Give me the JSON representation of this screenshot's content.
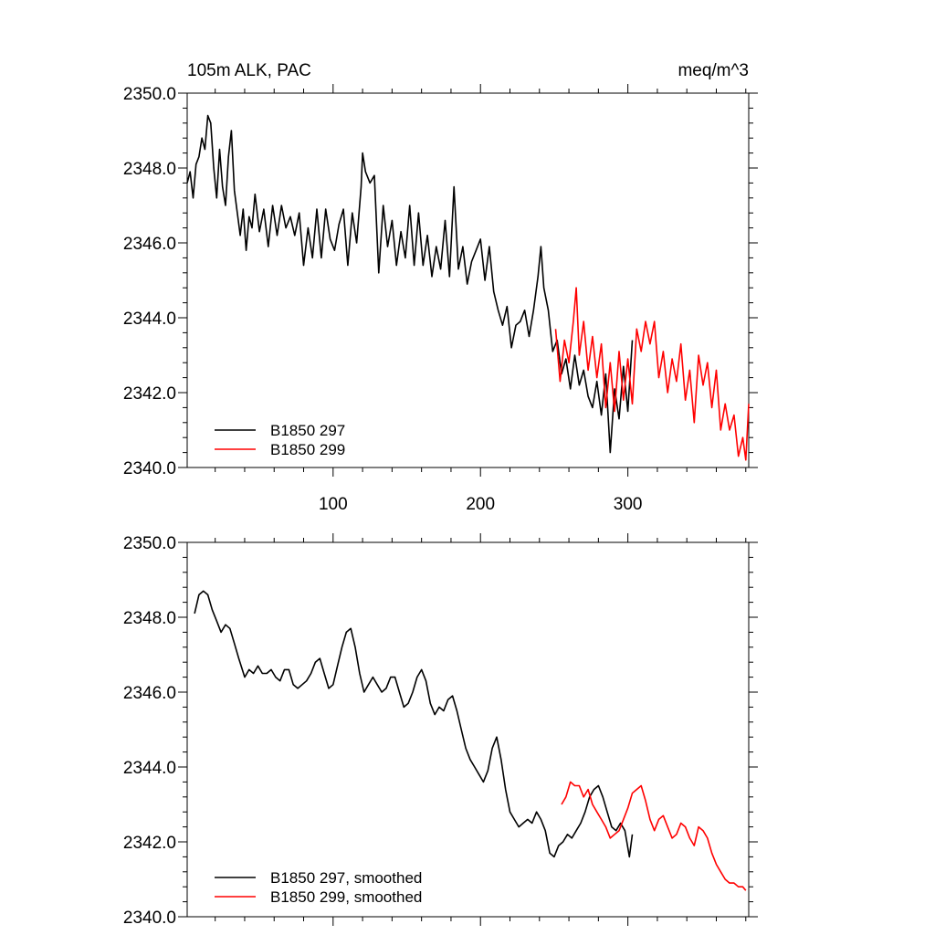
{
  "chart_data": [
    {
      "type": "line",
      "title": "105m ALK, PAC",
      "units": "meq/m^3",
      "xlim": [
        1,
        382
      ],
      "ylim": [
        2340,
        2350
      ],
      "y_ticks": [
        "2340.0",
        "2342.0",
        "2344.0",
        "2346.0",
        "2348.0",
        "2350.0"
      ],
      "x_ticks": [
        "100",
        "200",
        "300"
      ],
      "legend_position": "bottom-left",
      "series": [
        {
          "name": "B1850 297",
          "color": "#000000",
          "x": [
            1,
            3,
            5,
            7,
            9,
            11,
            13,
            15,
            17,
            19,
            21,
            23,
            25,
            27,
            29,
            31,
            33,
            35,
            37,
            39,
            41,
            43,
            45,
            47,
            50,
            53,
            56,
            59,
            62,
            65,
            68,
            71,
            74,
            77,
            80,
            83,
            86,
            89,
            92,
            95,
            98,
            101,
            104,
            107,
            110,
            113,
            116,
            119,
            120,
            122,
            125,
            128,
            131,
            134,
            137,
            140,
            143,
            146,
            149,
            152,
            155,
            158,
            161,
            164,
            167,
            170,
            173,
            176,
            179,
            182,
            185,
            188,
            191,
            194,
            197,
            200,
            203,
            206,
            209,
            212,
            215,
            218,
            221,
            224,
            227,
            230,
            233,
            236,
            239,
            241,
            243,
            246,
            249,
            252,
            255,
            258,
            261,
            264,
            267,
            270,
            273,
            276,
            279,
            282,
            285,
            288,
            291,
            294,
            297,
            300,
            303
          ],
          "y": [
            2347.6,
            2347.9,
            2347.2,
            2348.1,
            2348.3,
            2348.8,
            2348.5,
            2349.4,
            2349.2,
            2348.0,
            2347.2,
            2348.5,
            2347.5,
            2347.0,
            2348.3,
            2349.0,
            2347.4,
            2346.8,
            2346.2,
            2346.9,
            2345.8,
            2346.7,
            2346.4,
            2347.3,
            2346.3,
            2346.9,
            2345.9,
            2347.0,
            2346.2,
            2347.0,
            2346.4,
            2346.7,
            2346.2,
            2346.8,
            2345.4,
            2346.4,
            2345.6,
            2346.9,
            2345.6,
            2346.9,
            2346.1,
            2345.8,
            2346.5,
            2346.9,
            2345.4,
            2346.8,
            2346.0,
            2347.5,
            2348.4,
            2347.9,
            2347.6,
            2347.8,
            2345.2,
            2347.0,
            2345.9,
            2346.6,
            2345.4,
            2346.3,
            2345.6,
            2347.0,
            2345.4,
            2346.8,
            2345.4,
            2346.2,
            2345.1,
            2345.9,
            2345.3,
            2346.6,
            2345.1,
            2347.5,
            2345.3,
            2345.9,
            2344.9,
            2345.5,
            2345.8,
            2346.1,
            2345.0,
            2345.9,
            2344.7,
            2344.2,
            2343.8,
            2344.3,
            2343.2,
            2343.8,
            2343.9,
            2344.2,
            2343.5,
            2344.2,
            2345.1,
            2345.9,
            2344.8,
            2344.2,
            2343.1,
            2343.4,
            2342.5,
            2342.9,
            2342.1,
            2343.0,
            2342.2,
            2342.6,
            2341.9,
            2341.6,
            2342.3,
            2341.4,
            2342.5,
            2340.4,
            2342.1,
            2341.3,
            2342.7,
            2341.5,
            2343.4
          ]
        },
        {
          "name": "B1850 299",
          "color": "#ff0000",
          "x": [
            251,
            254,
            257,
            260,
            263,
            265,
            267,
            270,
            273,
            276,
            279,
            282,
            285,
            288,
            291,
            294,
            297,
            300,
            303,
            306,
            309,
            312,
            315,
            318,
            321,
            324,
            327,
            330,
            333,
            336,
            339,
            342,
            345,
            348,
            351,
            354,
            357,
            360,
            363,
            366,
            369,
            372,
            375,
            378,
            380,
            382
          ],
          "y": [
            2343.7,
            2342.3,
            2343.4,
            2342.8,
            2343.9,
            2344.8,
            2343.0,
            2343.9,
            2342.6,
            2343.5,
            2342.4,
            2343.3,
            2341.6,
            2342.8,
            2341.5,
            2343.1,
            2341.8,
            2342.9,
            2341.7,
            2343.7,
            2343.1,
            2343.9,
            2343.3,
            2343.9,
            2342.4,
            2343.1,
            2342.0,
            2342.9,
            2342.3,
            2343.3,
            2341.8,
            2342.6,
            2341.2,
            2343.0,
            2342.2,
            2342.8,
            2341.6,
            2342.6,
            2341.0,
            2341.7,
            2341.0,
            2341.4,
            2340.3,
            2340.8,
            2340.2,
            2341.7
          ]
        }
      ]
    },
    {
      "type": "line",
      "xlim": [
        1,
        382
      ],
      "ylim": [
        2340,
        2350
      ],
      "y_ticks": [
        "2340.0",
        "2342.0",
        "2344.0",
        "2346.0",
        "2348.0",
        "2350.0"
      ],
      "legend_position": "bottom-left",
      "series": [
        {
          "name": "B1850 297, smoothed",
          "color": "#000000",
          "x": [
            6,
            9,
            12,
            15,
            18,
            21,
            24,
            27,
            30,
            33,
            36,
            40,
            43,
            46,
            49,
            52,
            55,
            58,
            61,
            64,
            67,
            70,
            73,
            76,
            79,
            82,
            85,
            88,
            91,
            94,
            97,
            100,
            103,
            106,
            109,
            112,
            115,
            118,
            121,
            124,
            127,
            130,
            133,
            136,
            139,
            142,
            145,
            148,
            151,
            154,
            157,
            160,
            163,
            166,
            169,
            172,
            175,
            178,
            181,
            184,
            187,
            190,
            193,
            196,
            199,
            202,
            205,
            208,
            211,
            214,
            217,
            220,
            223,
            226,
            229,
            232,
            235,
            238,
            241,
            244,
            247,
            250,
            253,
            256,
            259,
            262,
            265,
            268,
            271,
            274,
            277,
            280,
            283,
            286,
            289,
            292,
            295,
            298,
            301,
            303
          ],
          "y": [
            2348.1,
            2348.6,
            2348.7,
            2348.6,
            2348.2,
            2347.9,
            2347.6,
            2347.8,
            2347.7,
            2347.3,
            2346.9,
            2346.4,
            2346.6,
            2346.5,
            2346.7,
            2346.5,
            2346.5,
            2346.6,
            2346.4,
            2346.3,
            2346.6,
            2346.6,
            2346.2,
            2346.1,
            2346.2,
            2346.3,
            2346.5,
            2346.8,
            2346.9,
            2346.5,
            2346.1,
            2346.2,
            2346.7,
            2347.2,
            2347.6,
            2347.7,
            2347.2,
            2346.5,
            2346.0,
            2346.2,
            2346.4,
            2346.2,
            2346.0,
            2346.1,
            2346.4,
            2346.4,
            2346.0,
            2345.6,
            2345.7,
            2346.0,
            2346.4,
            2346.6,
            2346.3,
            2345.7,
            2345.4,
            2345.6,
            2345.5,
            2345.8,
            2345.9,
            2345.5,
            2345.0,
            2344.5,
            2344.2,
            2344.0,
            2343.8,
            2343.6,
            2343.9,
            2344.5,
            2344.8,
            2344.2,
            2343.4,
            2342.8,
            2342.6,
            2342.4,
            2342.5,
            2342.6,
            2342.5,
            2342.8,
            2342.6,
            2342.3,
            2341.7,
            2341.6,
            2341.9,
            2342.0,
            2342.2,
            2342.1,
            2342.3,
            2342.5,
            2342.8,
            2343.2,
            2343.4,
            2343.5,
            2343.2,
            2342.8,
            2342.4,
            2342.3,
            2342.5,
            2342.3,
            2341.6,
            2342.2
          ]
        },
        {
          "name": "B1850 299, smoothed",
          "color": "#ff0000",
          "x": [
            255,
            258,
            261,
            264,
            267,
            270,
            273,
            276,
            279,
            282,
            285,
            288,
            291,
            294,
            297,
            300,
            303,
            306,
            309,
            312,
            315,
            318,
            321,
            324,
            327,
            330,
            333,
            336,
            339,
            342,
            345,
            348,
            351,
            354,
            357,
            360,
            363,
            366,
            369,
            372,
            375,
            378,
            380
          ],
          "y": [
            2343.0,
            2343.2,
            2343.6,
            2343.5,
            2343.5,
            2343.2,
            2343.4,
            2343.0,
            2342.8,
            2342.6,
            2342.4,
            2342.1,
            2342.2,
            2342.3,
            2342.6,
            2342.9,
            2343.3,
            2343.4,
            2343.5,
            2343.1,
            2342.6,
            2342.3,
            2342.6,
            2342.7,
            2342.4,
            2342.1,
            2342.2,
            2342.5,
            2342.4,
            2342.1,
            2341.9,
            2342.4,
            2342.3,
            2342.1,
            2341.7,
            2341.4,
            2341.2,
            2341.0,
            2340.9,
            2340.9,
            2340.8,
            2340.8,
            2340.7
          ]
        }
      ]
    }
  ]
}
